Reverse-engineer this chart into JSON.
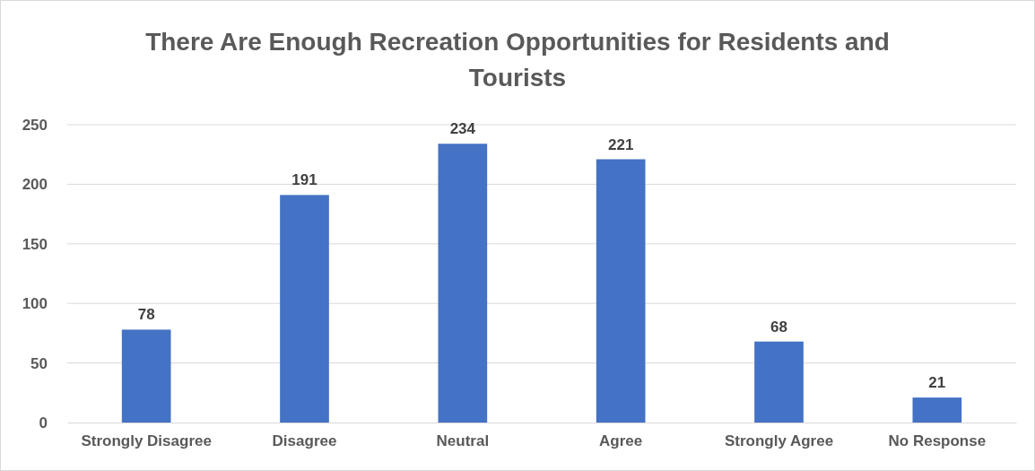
{
  "chart_data": {
    "type": "bar",
    "title": "There Are Enough Recreation Opportunities for Residents and Tourists",
    "categories": [
      "Strongly Disagree",
      "Disagree",
      "Neutral",
      "Agree",
      "Strongly Agree",
      "No Response"
    ],
    "values": [
      78,
      191,
      234,
      221,
      68,
      21
    ],
    "color": "#4472c4",
    "ylim": [
      0,
      250
    ],
    "yticks": [
      0,
      50,
      100,
      150,
      200,
      250
    ],
    "grid": "y",
    "data_labels": true
  }
}
